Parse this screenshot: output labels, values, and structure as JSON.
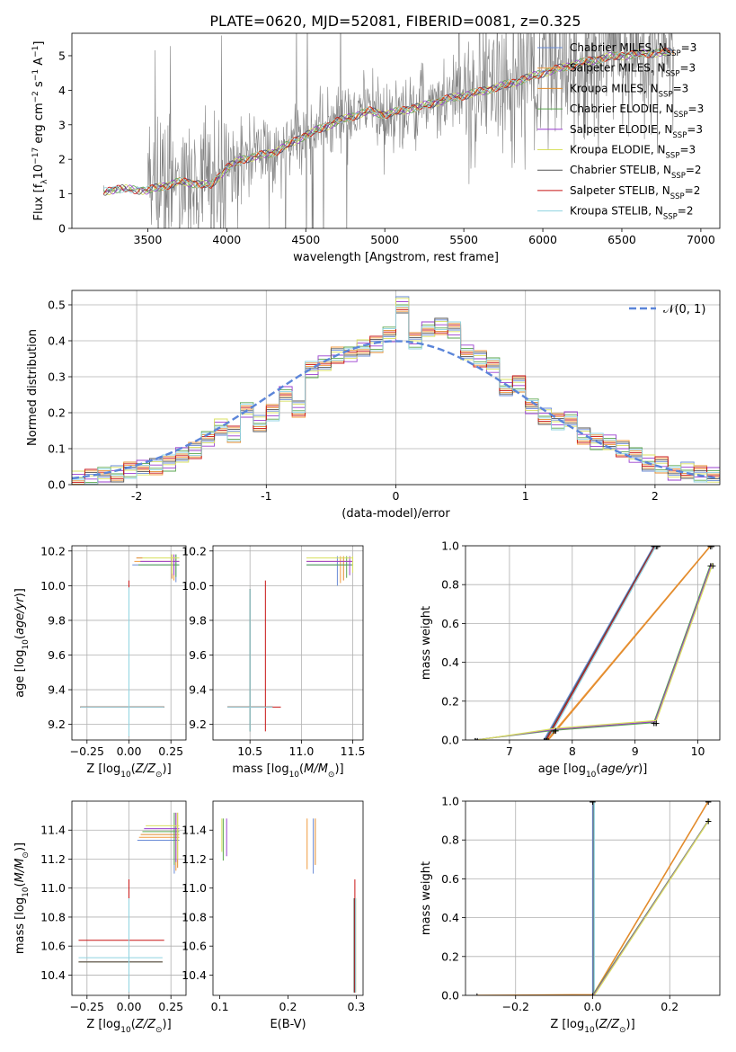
{
  "figure": {
    "title": "PLATE=0620, MJD=52081, FIBERID=0081, z=0.325"
  },
  "colors": {
    "Chabrier MILES": "#6a8bd6",
    "Salpeter MILES": "#f09a3e",
    "Kroupa MILES": "#e08a2c",
    "Chabrier ELODIE": "#5aa64f",
    "Salpeter ELODIE": "#9a3fcf",
    "Kroupa ELODIE": "#d8e060",
    "Chabrier STELIB": "#555555",
    "Salpeter STELIB": "#c81414",
    "Kroupa STELIB": "#8fd3e0",
    "data": "#808080",
    "gauss": "#5b85d9"
  },
  "chart_data": [
    {
      "id": "spectrum",
      "type": "line",
      "xlabel": "wavelength [Angstrom, rest frame]",
      "ylabel": "Flux [f_λ 10^-17 erg cm^-2 s^-1 A^-1]",
      "xlim": [
        3020,
        7120
      ],
      "ylim": [
        0,
        5.65
      ],
      "xticks": [
        3500,
        4000,
        4500,
        5000,
        5500,
        6000,
        6500,
        7000
      ],
      "yticks": [
        0,
        1,
        2,
        3,
        4,
        5
      ],
      "legend_loc": "upper right",
      "legend": [
        {
          "label": "Chabrier MILES, N",
          "sub": "SSP",
          "suffix": "=3"
        },
        {
          "label": "Salpeter MILES, N",
          "sub": "SSP",
          "suffix": "=3"
        },
        {
          "label": "Kroupa MILES, N",
          "sub": "SSP",
          "suffix": "=3"
        },
        {
          "label": "Chabrier ELODIE, N",
          "sub": "SSP",
          "suffix": "=3"
        },
        {
          "label": "Salpeter ELODIE, N",
          "sub": "SSP",
          "suffix": "=3"
        },
        {
          "label": "Kroupa ELODIE, N",
          "sub": "SSP",
          "suffix": "=3"
        },
        {
          "label": "Chabrier STELIB, N",
          "sub": "SSP",
          "suffix": "=2"
        },
        {
          "label": "Salpeter STELIB, N",
          "sub": "SSP",
          "suffix": "=2"
        },
        {
          "label": "Kroupa STELIB, N",
          "sub": "SSP",
          "suffix": "=2"
        }
      ],
      "continuum_model": [
        [
          3220,
          1.05
        ],
        [
          3300,
          1.15
        ],
        [
          3500,
          1.1
        ],
        [
          3700,
          1.35
        ],
        [
          3900,
          1.25
        ],
        [
          4000,
          1.75
        ],
        [
          4100,
          2.0
        ],
        [
          4300,
          2.2
        ],
        [
          4500,
          2.7
        ],
        [
          4700,
          3.1
        ],
        [
          4900,
          3.4
        ],
        [
          5000,
          3.3
        ],
        [
          5200,
          3.5
        ],
        [
          5400,
          3.75
        ],
        [
          5600,
          3.95
        ],
        [
          5800,
          4.2
        ],
        [
          6000,
          4.5
        ],
        [
          6200,
          4.75
        ],
        [
          6400,
          4.95
        ],
        [
          6600,
          5.05
        ],
        [
          6800,
          5.1
        ]
      ]
    },
    {
      "id": "residuals",
      "type": "line",
      "xlabel": "(data-model)/error",
      "ylabel": "Normed distribution",
      "xlim": [
        -2.5,
        2.5
      ],
      "ylim": [
        0,
        0.54
      ],
      "xticks": [
        -2,
        -1,
        0,
        1,
        2
      ],
      "yticks": [
        0.0,
        0.1,
        0.2,
        0.3,
        0.4,
        0.5
      ],
      "grid": true,
      "legend": "𝒩(0, 1)",
      "legend_loc": "upper right",
      "gaussian": {
        "mu": 0,
        "sigma": 1
      },
      "histogram_bins": [
        -2.5,
        -2.4,
        -2.3,
        -2.2,
        -2.1,
        -2.0,
        -1.9,
        -1.8,
        -1.7,
        -1.6,
        -1.5,
        -1.4,
        -1.3,
        -1.2,
        -1.1,
        -1.0,
        -0.9,
        -0.8,
        -0.7,
        -0.6,
        -0.5,
        -0.4,
        -0.3,
        -0.2,
        -0.1,
        0.0,
        0.1,
        0.2,
        0.3,
        0.4,
        0.5,
        0.6,
        0.7,
        0.8,
        0.9,
        1.0,
        1.1,
        1.2,
        1.3,
        1.4,
        1.5,
        1.6,
        1.7,
        1.8,
        1.9,
        2.0,
        2.1,
        2.2,
        2.3,
        2.4,
        2.5
      ],
      "histogram_values": [
        0.015,
        0.02,
        0.03,
        0.03,
        0.04,
        0.045,
        0.05,
        0.06,
        0.085,
        0.095,
        0.125,
        0.16,
        0.14,
        0.21,
        0.17,
        0.2,
        0.25,
        0.21,
        0.32,
        0.34,
        0.36,
        0.36,
        0.38,
        0.39,
        0.42,
        0.5,
        0.4,
        0.43,
        0.44,
        0.43,
        0.37,
        0.35,
        0.33,
        0.27,
        0.28,
        0.22,
        0.19,
        0.175,
        0.18,
        0.135,
        0.12,
        0.12,
        0.1,
        0.08,
        0.06,
        0.055,
        0.035,
        0.04,
        0.03,
        0.025
      ]
    },
    {
      "id": "age-vs-Z",
      "type": "scatter",
      "xlabel": "Z [log10(Z/Z⊙)]",
      "ylabel": "age [log10(age/yr)]",
      "xlim": [
        -0.34,
        0.34
      ],
      "ylim": [
        9.11,
        10.23
      ],
      "xticks": [
        -0.25,
        0.0,
        0.25
      ],
      "xticklabels": [
        "−0.25",
        "0.00",
        "0.25"
      ],
      "yticks": [
        9.2,
        9.4,
        9.6,
        9.8,
        10.0,
        10.2
      ],
      "grid": true
    },
    {
      "id": "age-vs-mass",
      "type": "scatter",
      "xlabel": "mass [log10(M/M⊙)]",
      "ylabel": "",
      "xlim": [
        10.14,
        11.6
      ],
      "ylim": [
        9.11,
        10.23
      ],
      "xticks": [
        10.5,
        11.0,
        11.5
      ],
      "yticks": [
        9.2,
        9.4,
        9.6,
        9.8,
        10.0,
        10.2
      ],
      "grid": true
    },
    {
      "id": "massweight-vs-age",
      "type": "line",
      "xlabel": "age [log10(age/yr)]",
      "ylabel": "mass weight",
      "xlim": [
        6.3,
        10.35
      ],
      "ylim": [
        0,
        1.0
      ],
      "xticks": [
        7,
        8,
        9,
        10
      ],
      "yticks": [
        0.0,
        0.2,
        0.4,
        0.6,
        0.8,
        1.0
      ],
      "grid": true
    },
    {
      "id": "mass-vs-Z",
      "type": "scatter",
      "xlabel": "Z [log10(Z/Z⊙)]",
      "ylabel": "mass [log10(M/M⊙)]",
      "xlim": [
        -0.34,
        0.34
      ],
      "ylim": [
        10.26,
        11.6
      ],
      "xticks": [
        -0.25,
        0.0,
        0.25
      ],
      "xticklabels": [
        "−0.25",
        "0.00",
        "0.25"
      ],
      "yticks": [
        10.4,
        10.6,
        10.8,
        11.0,
        11.2,
        11.4
      ],
      "grid": true
    },
    {
      "id": "mass-vs-EBV",
      "type": "scatter",
      "xlabel": "E(B-V)",
      "ylabel": "",
      "xlim": [
        0.09,
        0.31
      ],
      "ylim": [
        10.26,
        11.6
      ],
      "xticks": [
        0.1,
        0.2,
        0.3
      ],
      "yticks": [
        10.4,
        10.6,
        10.8,
        11.0,
        11.2,
        11.4
      ],
      "grid": false
    },
    {
      "id": "massweight-vs-Z",
      "type": "line",
      "xlabel": "Z [log10(Z/Z⊙)]",
      "ylabel": "mass weight",
      "xlim": [
        -0.33,
        0.33
      ],
      "ylim": [
        0,
        1.0
      ],
      "xticks": [
        -0.2,
        0.0,
        0.2
      ],
      "xticklabels": [
        "−0.2",
        "0.0",
        "0.2"
      ],
      "yticks": [
        0.0,
        0.2,
        0.4,
        0.6,
        0.8,
        1.0
      ],
      "grid": true
    }
  ]
}
